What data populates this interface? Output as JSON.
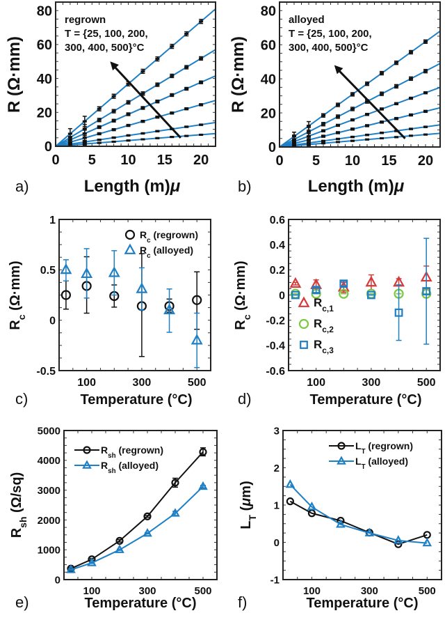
{
  "colors": {
    "blue": "#1f7fc4",
    "black": "#111111",
    "red": "#d43a3a",
    "green": "#7cc b43"
  },
  "chart_data": [
    {
      "id": "a",
      "panel_label": "a)",
      "type": "scatter",
      "xlabel": {
        "main": "Length (",
        "greek": "μ",
        "rest": "m)"
      },
      "ylabel": {
        "main": "R (Ω·mm)"
      },
      "xlim": [
        0,
        22
      ],
      "ylim": [
        0,
        85
      ],
      "xticks": [
        0,
        5,
        10,
        15,
        20
      ],
      "yticks": [
        0,
        20,
        40,
        60,
        80
      ],
      "annotation": {
        "lines": [
          "regrown",
          "T = {25, 100, 200,",
          "300, 400, 500}°C"
        ],
        "arrow_from": [
          17.2,
          5
        ],
        "arrow_to": [
          7.5,
          50
        ]
      },
      "x": [
        2,
        4,
        6,
        8,
        10,
        12,
        14,
        16,
        18,
        20
      ],
      "series": [
        {
          "fit": [
            0,
            3.68
          ],
          "err": 1.2,
          "y": [
            7.4,
            14.7,
            22.1,
            29.5,
            36.8,
            44.2,
            51.5,
            58.9,
            66.3,
            73.6
          ]
        },
        {
          "fit": [
            0,
            2.59
          ],
          "err": 1.0,
          "y": [
            5.2,
            10.4,
            15.5,
            20.7,
            25.9,
            31.1,
            36.3,
            41.5,
            46.6,
            51.8
          ]
        },
        {
          "fit": [
            0,
            1.886
          ],
          "err": 0.8,
          "y": [
            3.8,
            7.5,
            11.3,
            15.1,
            18.9,
            22.6,
            26.4,
            30.2,
            33.9,
            37.7
          ]
        },
        {
          "fit": [
            0,
            1.227
          ],
          "err": 0.6,
          "y": [
            2.5,
            4.9,
            7.4,
            9.8,
            12.3,
            14.7,
            17.2,
            19.6,
            22.1,
            24.5
          ]
        },
        {
          "fit": [
            0,
            0.636
          ],
          "err": 0.4,
          "y": [
            1.3,
            2.5,
            3.8,
            5.1,
            6.4,
            7.6,
            8.9,
            10.2,
            11.5,
            12.7
          ]
        },
        {
          "fit": [
            0,
            0.341
          ],
          "err": 0.3,
          "y": [
            0.7,
            1.4,
            2.0,
            2.7,
            3.4,
            4.1,
            4.8,
            5.5,
            6.1,
            6.8
          ]
        }
      ]
    },
    {
      "id": "b",
      "panel_label": "b)",
      "type": "scatter",
      "xlabel": {
        "main": "Length (",
        "greek": "μ",
        "rest": "m)"
      },
      "ylabel": {
        "main": "R (Ω·mm)"
      },
      "xlim": [
        0,
        22
      ],
      "ylim": [
        0,
        85
      ],
      "xticks": [
        0,
        5,
        10,
        15,
        20
      ],
      "yticks": [
        0,
        20,
        40,
        60,
        80
      ],
      "annotation": {
        "lines": [
          "alloyed",
          "T = {25, 100, 200,",
          "300, 400, 500}°C"
        ],
        "arrow_from": [
          17.2,
          5
        ],
        "arrow_to": [
          7.5,
          48
        ]
      },
      "x": [
        2,
        4,
        6,
        8,
        10,
        12,
        14,
        16,
        18,
        20
      ],
      "series": [
        {
          "fit": [
            0,
            3.09
          ],
          "err": 1.0,
          "y": [
            6.2,
            12.4,
            18.5,
            24.7,
            30.9,
            37.1,
            43.3,
            49.4,
            55.6,
            61.8
          ]
        },
        {
          "fit": [
            0,
            2.227
          ],
          "err": 1.0,
          "y": [
            4.5,
            8.9,
            13.4,
            17.8,
            22.3,
            26.7,
            31.2,
            35.6,
            40.1,
            44.5
          ]
        },
        {
          "fit": [
            0,
            1.59
          ],
          "err": 0.6,
          "y": [
            3.2,
            6.4,
            9.5,
            12.7,
            15.9,
            19.1,
            22.3,
            25.4,
            28.6,
            31.8
          ]
        },
        {
          "fit": [
            0,
            1.045
          ],
          "err": 0.6,
          "y": [
            2.1,
            4.2,
            6.3,
            8.4,
            10.5,
            12.5,
            14.6,
            16.7,
            18.8,
            20.9
          ]
        },
        {
          "fit": [
            0,
            0.59
          ],
          "err": 0.4,
          "y": [
            1.2,
            2.4,
            3.5,
            4.7,
            5.9,
            7.1,
            8.3,
            9.4,
            10.6,
            11.8
          ]
        },
        {
          "fit": [
            0,
            0.364
          ],
          "err": 0.3,
          "y": [
            0.7,
            1.5,
            2.2,
            2.9,
            3.6,
            4.4,
            5.1,
            5.8,
            6.6,
            7.3
          ]
        }
      ]
    },
    {
      "id": "c",
      "panel_label": "c)",
      "type": "scatter",
      "xlabel": {
        "main": "Temperature (°C)"
      },
      "ylabel": {
        "main": "R",
        "sub": "c",
        "rest": " (Ω·mm)"
      },
      "xlim": [
        0,
        550
      ],
      "ylim": [
        -0.5,
        1
      ],
      "xticks": [
        100,
        300,
        500
      ],
      "yticks": [
        -0.5,
        0,
        0.5,
        1
      ],
      "legend": "top-right",
      "x": [
        25,
        100,
        200,
        300,
        400,
        500
      ],
      "series": [
        {
          "name": {
            "main": "R",
            "sub": "c",
            "rest": " (regrown)"
          },
          "marker": "circle",
          "color": "#111111",
          "y": [
            0.25,
            0.34,
            0.24,
            0.14,
            0.14,
            0.2
          ],
          "lo": [
            0.11,
            0.07,
            0.13,
            -0.36,
            0.08,
            -0.09
          ],
          "hi": [
            0.39,
            0.63,
            0.35,
            0.66,
            0.21,
            0.48
          ]
        },
        {
          "name": {
            "main": "R",
            "sub": "c",
            "rest": " (alloyed)"
          },
          "marker": "triangle",
          "color": "#1f7fc4",
          "y": [
            0.5,
            0.46,
            0.47,
            0.31,
            0.1,
            -0.2
          ],
          "lo": [
            0.39,
            0.22,
            0.25,
            0.1,
            -0.12,
            -0.47
          ],
          "hi": [
            0.6,
            0.71,
            0.69,
            0.52,
            0.31,
            0.07
          ]
        }
      ]
    },
    {
      "id": "d",
      "panel_label": "d)",
      "type": "scatter",
      "xlabel": {
        "main": "Temperature (°C)"
      },
      "ylabel": {
        "main": "R",
        "sub": "c",
        "rest": " (Ω·mm)"
      },
      "xlim": [
        0,
        550
      ],
      "ylim": [
        -0.6,
        0.6
      ],
      "xticks": [
        100,
        300,
        500
      ],
      "yticks": [
        -0.6,
        -0.4,
        -0.2,
        0,
        0.2,
        0.4,
        0.6
      ],
      "legend": "bottom-left",
      "x": [
        25,
        100,
        200,
        300,
        400,
        500
      ],
      "series": [
        {
          "name": {
            "main": "R",
            "sub": "c,1",
            "rest": ""
          },
          "marker": "triangle",
          "color": "#d43a3a",
          "y": [
            0.09,
            0.08,
            0.06,
            0.1,
            0.1,
            0.14
          ],
          "lo": [
            0.08,
            0.04,
            0.02,
            0.04,
            0.08,
            0.05
          ],
          "hi": [
            0.1,
            0.12,
            0.1,
            0.16,
            0.13,
            0.23
          ]
        },
        {
          "name": {
            "main": "R",
            "sub": "c,2",
            "rest": ""
          },
          "marker": "circle",
          "color": "#7cc843",
          "y": [
            0.01,
            0.01,
            0.01,
            0.01,
            0.01,
            0.01
          ],
          "lo": [
            0.01,
            0.01,
            0.01,
            0.01,
            0.01,
            0.01
          ],
          "hi": [
            0.01,
            0.01,
            0.01,
            0.01,
            0.01,
            0.01
          ]
        },
        {
          "name": {
            "main": "R",
            "sub": "c,3",
            "rest": ""
          },
          "marker": "square",
          "color": "#1f7fc4",
          "y": [
            0,
            0.04,
            0.09,
            0,
            -0.14,
            0.03
          ],
          "lo": [
            0,
            0.02,
            0.07,
            0,
            -0.36,
            -0.39
          ],
          "hi": [
            0,
            0.06,
            0.11,
            0,
            0.08,
            0.45
          ]
        }
      ]
    },
    {
      "id": "e",
      "panel_label": "e)",
      "type": "line",
      "xlabel": {
        "main": "Temperature (°C)"
      },
      "ylabel": {
        "main": "R",
        "sub": "sh",
        "rest": " (Ω/sq)"
      },
      "xlim": [
        0,
        550
      ],
      "ylim": [
        0,
        5000
      ],
      "xticks": [
        100,
        300,
        500
      ],
      "yticks": [
        0,
        1000,
        2000,
        3000,
        4000,
        5000
      ],
      "legend": "top-left",
      "x": [
        25,
        100,
        200,
        300,
        400,
        500
      ],
      "series": [
        {
          "name": {
            "main": "R",
            "sub": "sh",
            "rest": " (regrown)"
          },
          "marker": "circle",
          "color": "#111111",
          "y": [
            370,
            680,
            1300,
            2120,
            3250,
            4280
          ],
          "lo": [
            340,
            650,
            1260,
            2090,
            3100,
            4150
          ],
          "hi": [
            400,
            710,
            1340,
            2150,
            3400,
            4420
          ]
        },
        {
          "name": {
            "main": "R",
            "sub": "sh",
            "rest": " (alloyed)"
          },
          "marker": "triangle",
          "color": "#1f7fc4",
          "y": [
            330,
            560,
            1000,
            1550,
            2220,
            3120
          ],
          "lo": [
            310,
            540,
            980,
            1530,
            2150,
            3080
          ],
          "hi": [
            350,
            580,
            1020,
            1570,
            2290,
            3160
          ]
        }
      ]
    },
    {
      "id": "f",
      "panel_label": "f)",
      "type": "line",
      "xlabel": {
        "main": "Temperature (°C)"
      },
      "ylabel": {
        "main": "L",
        "sub": "T",
        "rest": " (",
        "greek": "μ",
        "rest2": "m)"
      },
      "xlim": [
        0,
        550
      ],
      "ylim": [
        -1,
        3
      ],
      "xticks": [
        100,
        300,
        500
      ],
      "yticks": [
        -1,
        0,
        1,
        2,
        3
      ],
      "legend": "top-right",
      "x": [
        25,
        100,
        200,
        300,
        400,
        500
      ],
      "series": [
        {
          "name": {
            "main": "L",
            "sub": "T",
            "rest": " (regrown)"
          },
          "marker": "circle",
          "color": "#111111",
          "y": [
            1.1,
            0.78,
            0.58,
            0.26,
            -0.05,
            0.2
          ]
        },
        {
          "name": {
            "main": "L",
            "sub": "T",
            "rest": " (alloyed)"
          },
          "marker": "triangle",
          "color": "#1f7fc4",
          "y": [
            1.55,
            0.95,
            0.48,
            0.25,
            0.05,
            -0.02
          ]
        }
      ]
    }
  ]
}
